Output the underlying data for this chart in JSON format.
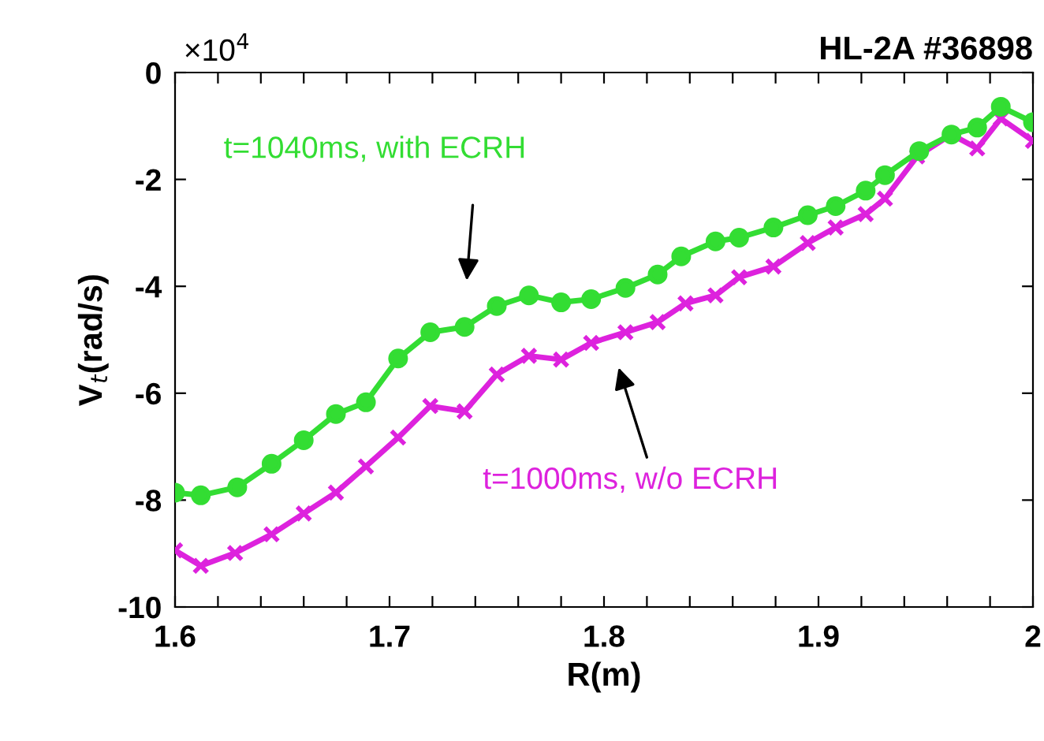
{
  "chart_data": {
    "type": "line",
    "title": "HL-2A #36898",
    "xlabel": "R(m)",
    "ylabel": "V$_{t}$(rad/s)",
    "xlim": [
      1.6,
      2.0
    ],
    "ylim": [
      -10,
      0
    ],
    "xticks": [
      1.6,
      {
        "value": 1.62,
        "label": null
      },
      {
        "value": 1.64,
        "label": null
      },
      {
        "value": 1.66,
        "label": null
      },
      {
        "value": 1.68,
        "label": null
      },
      1.7,
      {
        "value": 1.72,
        "label": null
      },
      {
        "value": 1.74,
        "label": null
      },
      {
        "value": 1.76,
        "label": null
      },
      {
        "value": 1.78,
        "label": null
      },
      1.8,
      {
        "value": 1.82,
        "label": null
      },
      {
        "value": 1.84,
        "label": null
      },
      {
        "value": 1.86,
        "label": null
      },
      {
        "value": 1.88,
        "label": null
      },
      1.9,
      {
        "value": 1.92,
        "label": null
      },
      {
        "value": 1.94,
        "label": null
      },
      {
        "value": 1.96,
        "label": null
      },
      {
        "value": 1.98,
        "label": null
      },
      {
        "value": 2.0,
        "label": "2"
      }
    ],
    "yticks": [
      -10,
      -8,
      -6,
      -4,
      -2,
      0
    ],
    "grid": false,
    "legend": false,
    "line_style": "solid",
    "series": [
      {
        "color": "#33dd33",
        "marker": "circle",
        "x": [
          1.6,
          1.612,
          1.629,
          1.645,
          1.66,
          1.675,
          1.689,
          1.704,
          1.719,
          1.735,
          1.75,
          1.765,
          1.78,
          1.794,
          1.81,
          1.825,
          1.836,
          1.852,
          1.863,
          1.879,
          1.895,
          1.908,
          1.922,
          1.931,
          1.947,
          1.962,
          1.974,
          1.985,
          2.0
        ],
        "values": [
          -7.86,
          -7.91,
          -7.76,
          -7.32,
          -6.88,
          -6.39,
          -6.17,
          -5.35,
          -4.86,
          -4.76,
          -4.37,
          -4.17,
          -4.3,
          -4.24,
          -4.03,
          -3.78,
          -3.44,
          -3.16,
          -3.09,
          -2.9,
          -2.67,
          -2.5,
          -2.21,
          -1.92,
          -1.47,
          -1.16,
          -1.03,
          -0.64,
          -0.93
        ]
      },
      {
        "color": "#dd22dd",
        "marker": "cross",
        "x": [
          1.6,
          1.612,
          1.628,
          1.645,
          1.66,
          1.675,
          1.689,
          1.704,
          1.719,
          1.735,
          1.75,
          1.765,
          1.78,
          1.794,
          1.81,
          1.825,
          1.838,
          1.852,
          1.863,
          1.879,
          1.895,
          1.908,
          1.922,
          1.931,
          1.946,
          1.962,
          1.974,
          1.985,
          2.0
        ],
        "values": [
          -8.94,
          -9.23,
          -8.99,
          -8.64,
          -8.25,
          -7.86,
          -7.37,
          -6.83,
          -6.24,
          -6.34,
          -5.65,
          -5.3,
          -5.37,
          -5.06,
          -4.86,
          -4.67,
          -4.32,
          -4.17,
          -3.83,
          -3.63,
          -3.19,
          -2.9,
          -2.65,
          -2.36,
          -1.57,
          -1.16,
          -1.42,
          -0.86,
          -1.28
        ]
      }
    ],
    "annotations": [
      "×10$^{4}$",
      "t=1040ms, with ECRH",
      "t=1000ms, w/o ECRH"
    ]
  }
}
